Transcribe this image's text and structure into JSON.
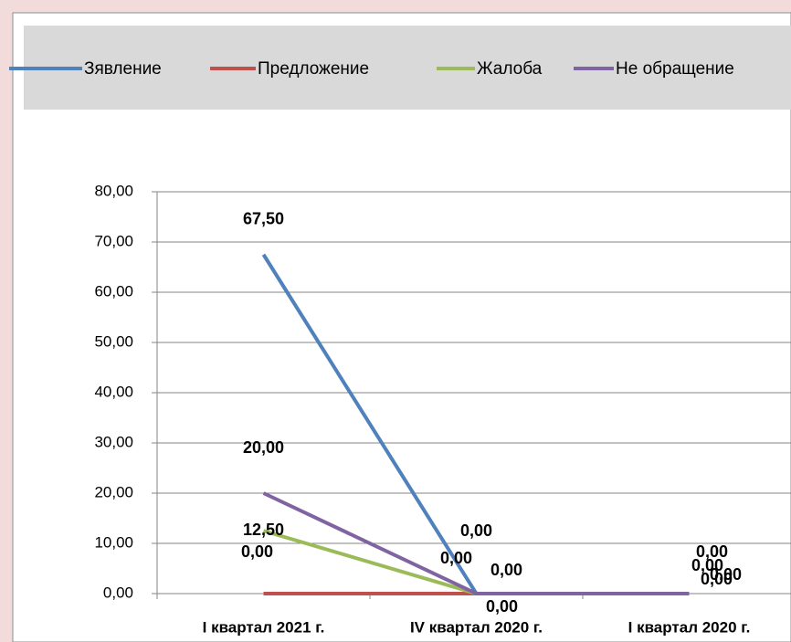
{
  "chart_data": {
    "type": "line",
    "categories": [
      "I квартал 2021 г.",
      "IV квартал 2020 г.",
      "I квартал 2020 г."
    ],
    "series": [
      {
        "name": "Зявление",
        "color": "#4f81bd",
        "values": [
          67.5,
          0,
          0
        ],
        "value_labels": [
          "67,50",
          "0,00",
          "0,00"
        ]
      },
      {
        "name": "Предложение",
        "color": "#c0504d",
        "values": [
          0,
          0,
          0
        ],
        "value_labels": [
          "0,00",
          "0,00",
          "0,00"
        ]
      },
      {
        "name": "Жалоба",
        "color": "#9bbb59",
        "values": [
          12.5,
          0,
          0
        ],
        "value_labels": [
          "12,50",
          "0,00",
          "0,00"
        ]
      },
      {
        "name": "Не обращение",
        "color": "#8064a2",
        "values": [
          20,
          0,
          0
        ],
        "value_labels": [
          "20,00",
          "0,00",
          "0,00"
        ]
      }
    ],
    "ylim": [
      0,
      80
    ],
    "yticks": [
      {
        "value": 0,
        "label": "0,00"
      },
      {
        "value": 10,
        "label": "10,00"
      },
      {
        "value": 20,
        "label": "20,00"
      },
      {
        "value": 30,
        "label": "30,00"
      },
      {
        "value": 40,
        "label": "40,00"
      },
      {
        "value": 50,
        "label": "50,00"
      },
      {
        "value": 60,
        "label": "60,00"
      },
      {
        "value": 70,
        "label": "70,00"
      },
      {
        "value": 80,
        "label": "80,00"
      }
    ],
    "grid": true,
    "legend": "top"
  }
}
